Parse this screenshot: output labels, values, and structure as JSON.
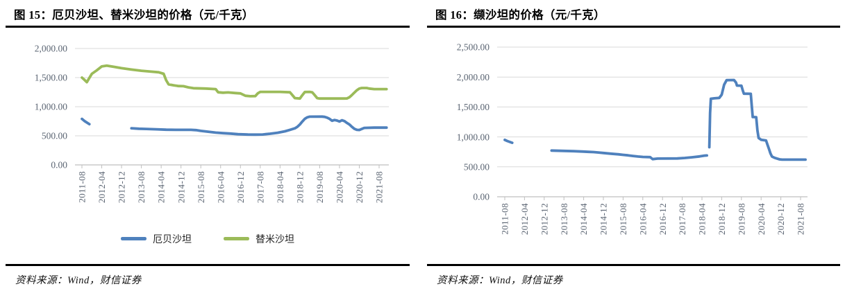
{
  "panels": [
    {
      "title": "图 15：厄贝沙坦、替米沙坦的价格（元/千克）",
      "source": "资料来源：Wind，财信证券",
      "chart_index": 0
    },
    {
      "title": "图 16：缬沙坦的价格（元/千克）",
      "source": "资料来源：Wind，财信证券",
      "chart_index": 1
    }
  ],
  "colors": {
    "series_blue": "#4F81BD",
    "series_green": "#9BBB59",
    "gridline": "#D9D9D9",
    "axis": "#BFBFBF",
    "tick_text": "#5a6472",
    "rule_black": "#000000"
  },
  "chart_data": [
    {
      "type": "line",
      "title": "厄贝沙坦、替米沙坦的价格（元/千克）",
      "unit": "元/千克",
      "x_unit": "months since 2011-08",
      "grid": "horizontal",
      "ylim": [
        0,
        2000
      ],
      "ytick_step": 500,
      "y_tick_labels": [
        "0.00",
        "500.00",
        "1,000.00",
        "1,500.00",
        "2,000.00"
      ],
      "x_tick_labels": [
        "2011-08",
        "2012-04",
        "2012-12",
        "2013-08",
        "2014-04",
        "2014-12",
        "2015-08",
        "2016-04",
        "2016-12",
        "2017-08",
        "2018-04",
        "2018-12",
        "2019-08",
        "2020-04",
        "2020-12",
        "2021-08"
      ],
      "x_tick_month_indices": [
        0,
        8,
        16,
        24,
        32,
        40,
        48,
        56,
        64,
        72,
        80,
        88,
        96,
        104,
        112,
        120
      ],
      "legend": {
        "position": "bottom",
        "entries": [
          {
            "label": "厄贝沙坦",
            "color": "#4F81BD"
          },
          {
            "label": "替米沙坦",
            "color": "#9BBB59"
          }
        ]
      },
      "series": [
        {
          "name": "厄贝沙坦",
          "key": "irbesartan",
          "color": "#4F81BD",
          "segments": [
            [
              [
                0,
                790
              ],
              [
                1,
                755
              ],
              [
                3,
                700
              ]
            ],
            [
              [
                20,
                630
              ],
              [
                23,
                622
              ],
              [
                26,
                618
              ],
              [
                30,
                612
              ],
              [
                34,
                605
              ],
              [
                38,
                602
              ],
              [
                44,
                602
              ],
              [
                46,
                598
              ],
              [
                48,
                585
              ],
              [
                51,
                570
              ],
              [
                54,
                555
              ],
              [
                57,
                545
              ],
              [
                60,
                538
              ],
              [
                63,
                527
              ],
              [
                67,
                521
              ],
              [
                70,
                520
              ],
              [
                73,
                523
              ],
              [
                76,
                536
              ],
              [
                79,
                552
              ],
              [
                82,
                577
              ],
              [
                84,
                602
              ],
              [
                86,
                628
              ],
              [
                87,
                655
              ],
              [
                88,
                695
              ],
              [
                89,
                745
              ],
              [
                90,
                792
              ],
              [
                91,
                818
              ],
              [
                92,
                828
              ],
              [
                97,
                830
              ],
              [
                98,
                825
              ],
              [
                99,
                812
              ],
              [
                100,
                790
              ],
              [
                101,
                758
              ],
              [
                102,
                772
              ],
              [
                103,
                762
              ],
              [
                104,
                745
              ],
              [
                105,
                768
              ],
              [
                106,
                752
              ],
              [
                107,
                722
              ],
              [
                108,
                695
              ],
              [
                109,
                655
              ],
              [
                110,
                620
              ],
              [
                111,
                602
              ],
              [
                112,
                600
              ],
              [
                113,
                618
              ],
              [
                114,
                636
              ],
              [
                118,
                640
              ],
              [
                123,
                640
              ]
            ]
          ]
        },
        {
          "name": "替米沙坦",
          "key": "telmisartan",
          "color": "#9BBB59",
          "segments": [
            [
              [
                0,
                1500
              ],
              [
                1,
                1462
              ],
              [
                2,
                1422
              ],
              [
                3,
                1495
              ],
              [
                4,
                1565
              ],
              [
                6,
                1625
              ],
              [
                8,
                1692
              ],
              [
                10,
                1705
              ],
              [
                13,
                1685
              ],
              [
                16,
                1662
              ],
              [
                20,
                1638
              ],
              [
                24,
                1618
              ],
              [
                28,
                1602
              ],
              [
                31,
                1592
              ],
              [
                33,
                1565
              ],
              [
                34,
                1455
              ],
              [
                35,
                1385
              ],
              [
                37,
                1368
              ],
              [
                39,
                1355
              ],
              [
                41,
                1352
              ],
              [
                43,
                1332
              ],
              [
                45,
                1318
              ],
              [
                50,
                1312
              ],
              [
                54,
                1302
              ],
              [
                55,
                1248
              ],
              [
                57,
                1240
              ],
              [
                59,
                1245
              ],
              [
                62,
                1235
              ],
              [
                64,
                1228
              ],
              [
                66,
                1188
              ],
              [
                68,
                1180
              ],
              [
                70,
                1182
              ],
              [
                71,
                1228
              ],
              [
                72,
                1255
              ],
              [
                80,
                1255
              ],
              [
                84,
                1248
              ],
              [
                85,
                1198
              ],
              [
                86,
                1148
              ],
              [
                88,
                1140
              ],
              [
                89,
                1198
              ],
              [
                90,
                1252
              ],
              [
                92,
                1255
              ],
              [
                93,
                1248
              ],
              [
                94,
                1198
              ],
              [
                95,
                1148
              ],
              [
                96,
                1140
              ],
              [
                106,
                1140
              ],
              [
                107,
                1142
              ],
              [
                108,
                1162
              ],
              [
                109,
                1200
              ],
              [
                110,
                1242
              ],
              [
                111,
                1282
              ],
              [
                112,
                1312
              ],
              [
                113,
                1322
              ],
              [
                115,
                1322
              ],
              [
                116,
                1312
              ],
              [
                118,
                1302
              ],
              [
                123,
                1302
              ]
            ]
          ]
        }
      ]
    },
    {
      "type": "line",
      "title": "缬沙坦的价格（元/千克）",
      "unit": "元/千克",
      "x_unit": "months since 2011-08",
      "grid": "horizontal",
      "ylim": [
        0,
        2500
      ],
      "ytick_step": 500,
      "y_tick_labels": [
        "0.00",
        "500.00",
        "1,000.00",
        "1,500.00",
        "2,000.00",
        "2,500.00"
      ],
      "x_tick_labels": [
        "2011-08",
        "2012-04",
        "2012-12",
        "2013-08",
        "2014-04",
        "2014-12",
        "2015-08",
        "2016-04",
        "2016-12",
        "2017-08",
        "2018-04",
        "2018-12",
        "2019-08",
        "2020-04",
        "2020-12",
        "2021-08"
      ],
      "x_tick_month_indices": [
        0,
        8,
        16,
        24,
        32,
        40,
        48,
        56,
        64,
        72,
        80,
        88,
        96,
        104,
        112,
        120
      ],
      "legend": {
        "position": "none",
        "entries": []
      },
      "series": [
        {
          "name": "缬沙坦",
          "key": "valsartan",
          "color": "#4F81BD",
          "segments": [
            [
              [
                0,
                950
              ],
              [
                1,
                932
              ],
              [
                3,
                902
              ]
            ],
            [
              [
                19,
                772
              ],
              [
                24,
                766
              ],
              [
                28,
                762
              ],
              [
                32,
                755
              ],
              [
                34,
                750
              ],
              [
                36,
                746
              ],
              [
                38,
                740
              ],
              [
                40,
                732
              ],
              [
                43,
                720
              ],
              [
                46,
                710
              ],
              [
                48,
                700
              ],
              [
                50,
                692
              ],
              [
                52,
                682
              ],
              [
                54,
                672
              ],
              [
                56,
                666
              ],
              [
                59,
                662
              ],
              [
                60,
                628
              ],
              [
                62,
                638
              ],
              [
                70,
                640
              ],
              [
                73,
                648
              ],
              [
                76,
                660
              ],
              [
                79,
                674
              ],
              [
                81,
                688
              ],
              [
                82,
                690
              ]
            ],
            [
              [
                83,
                828
              ],
              [
                83.3,
                1400
              ],
              [
                83.6,
                1638
              ],
              [
                85,
                1645
              ],
              [
                87,
                1652
              ],
              [
                88,
                1705
              ],
              [
                89,
                1872
              ],
              [
                90,
                1948
              ],
              [
                93,
                1950
              ],
              [
                93.8,
                1908
              ],
              [
                94.2,
                1858
              ],
              [
                96,
                1855
              ],
              [
                96.5,
                1782
              ],
              [
                97,
                1722
              ],
              [
                99.8,
                1720
              ],
              [
                100.2,
                1520
              ],
              [
                100.6,
                1332
              ],
              [
                102,
                1330
              ],
              [
                102.5,
                1105
              ],
              [
                103,
                982
              ],
              [
                104,
                952
              ],
              [
                106,
                940
              ],
              [
                106.6,
                868
              ],
              [
                107.2,
                795
              ],
              [
                107.8,
                722
              ],
              [
                108.4,
                672
              ],
              [
                109.5,
                650
              ],
              [
                110.5,
                638
              ],
              [
                111.5,
                625
              ],
              [
                112.5,
                620
              ],
              [
                122,
                620
              ]
            ]
          ]
        }
      ]
    }
  ]
}
